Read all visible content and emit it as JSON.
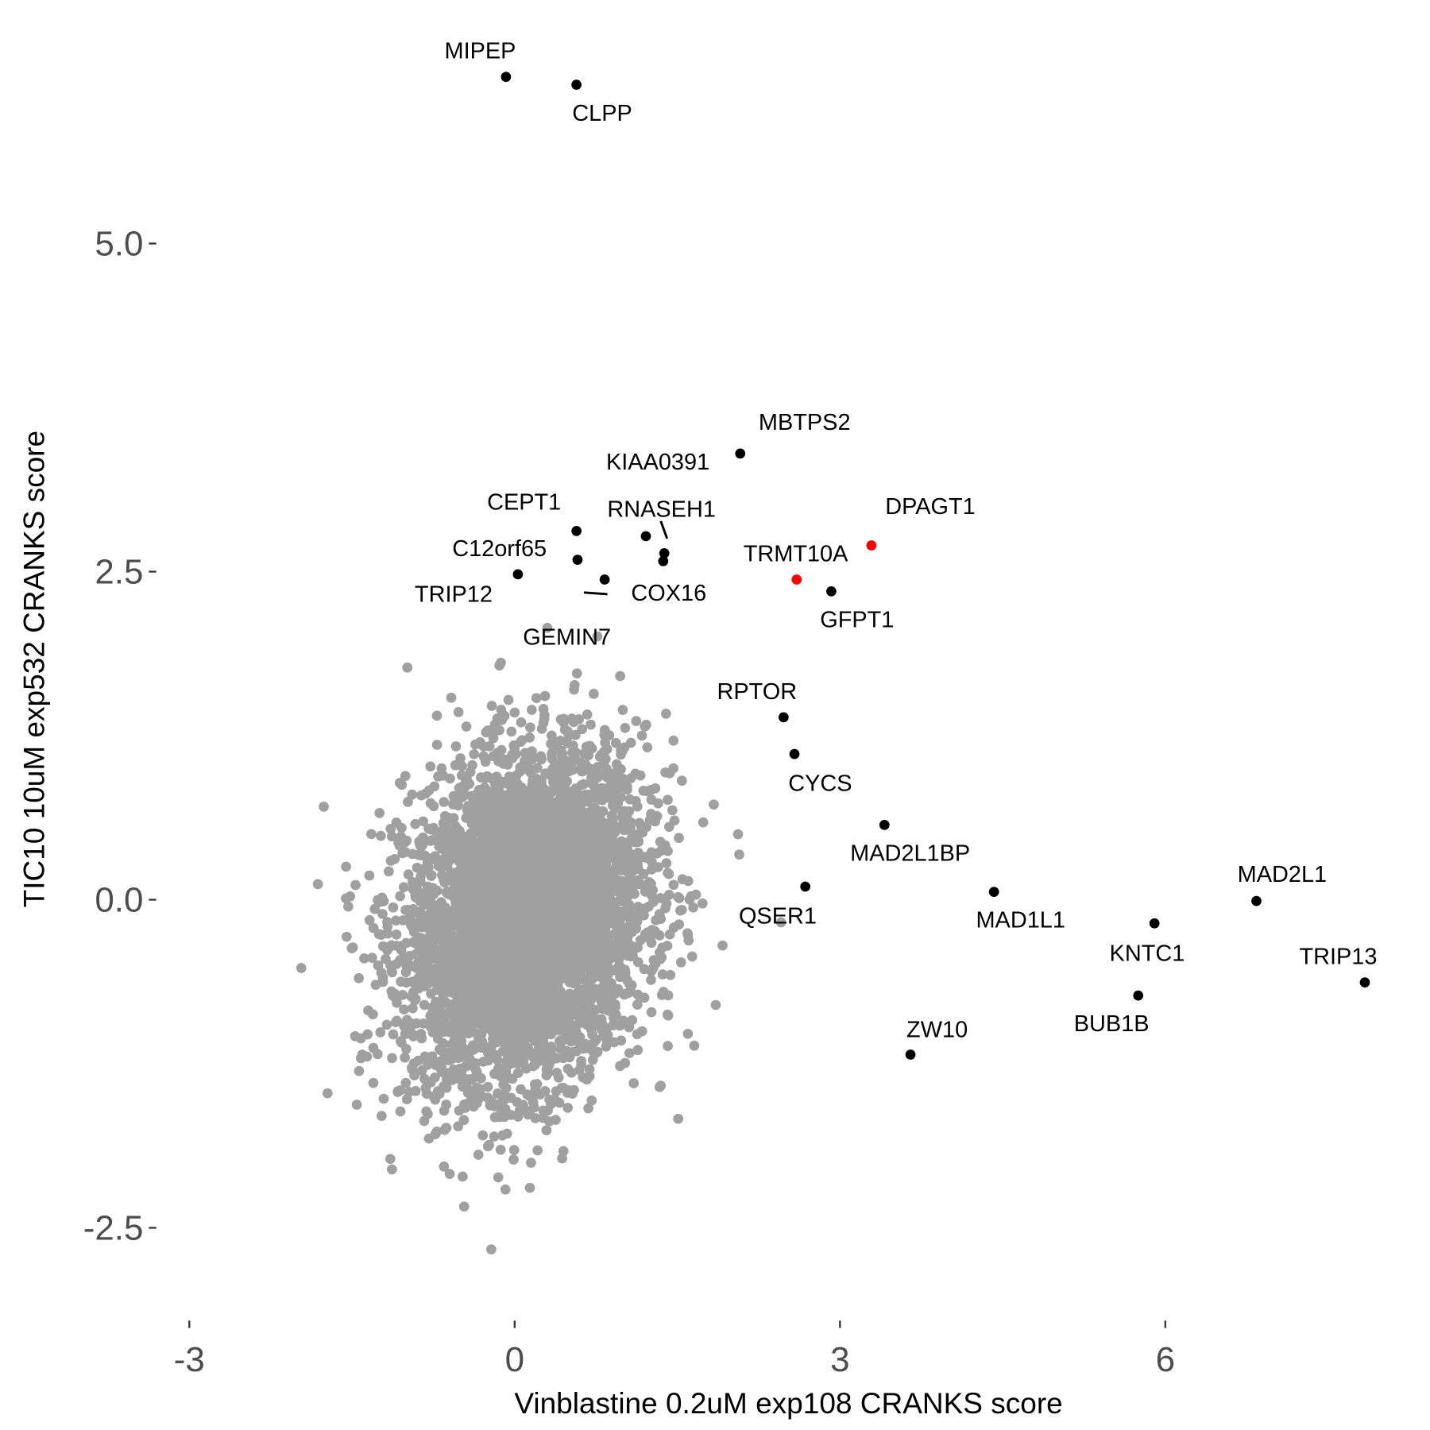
{
  "chart_data": {
    "type": "scatter",
    "title": "",
    "xlabel": "Vinblastine 0.2uM exp108 CRANKS score",
    "ylabel": "TIC10 10uM exp532 CRANKS score",
    "xlim": [
      -3.05,
      8.3
    ],
    "ylim": [
      -3.2,
      6.75
    ],
    "x_ticks": [
      -3,
      0,
      3,
      6
    ],
    "x_tick_labels": [
      "-3",
      "0",
      "3",
      "6"
    ],
    "y_ticks": [
      -2.5,
      0,
      2.5,
      5
    ],
    "y_tick_labels": [
      "-2.5",
      "0.0",
      "2.5",
      "5.0"
    ],
    "grid": false,
    "colors": {
      "background_points": "#a0a0a0",
      "highlight": "#000000",
      "special": "#ff0000"
    },
    "background_points": {
      "count": 5000,
      "x_mean": 0.1,
      "y_mean": -0.15,
      "x_sd": 0.55,
      "y_sd": 0.62,
      "correlation": 0.2,
      "note_range_x": [
        -2.8,
        3.4
      ],
      "note_range_y": [
        -2.75,
        2.5
      ]
    },
    "labeled_points": [
      {
        "name": "MIPEP",
        "x": -0.08,
        "y": 6.27,
        "color": "black"
      },
      {
        "name": "CLPP",
        "x": 0.57,
        "y": 6.21,
        "color": "black"
      },
      {
        "name": "MBTPS2",
        "x": 2.08,
        "y": 3.4,
        "color": "black"
      },
      {
        "name": "KIAA0391",
        "x": 1.38,
        "y": 2.64,
        "color": "black"
      },
      {
        "name": "RNASEH1",
        "x": 1.21,
        "y": 2.77,
        "color": "black"
      },
      {
        "name": "CEPT1",
        "x": 0.57,
        "y": 2.81,
        "color": "black"
      },
      {
        "name": "C12orf65",
        "x": 0.58,
        "y": 2.59,
        "color": "black"
      },
      {
        "name": "TRIP12",
        "x": 0.03,
        "y": 2.48,
        "color": "black"
      },
      {
        "name": "COX16",
        "x": 1.37,
        "y": 2.58,
        "color": "black"
      },
      {
        "name": "GEMIN7",
        "x": 0.83,
        "y": 2.44,
        "color": "black"
      },
      {
        "name": "DPAGT1",
        "x": 3.29,
        "y": 2.7,
        "color": "red"
      },
      {
        "name": "TRMT10A",
        "x": 2.6,
        "y": 2.44,
        "color": "red"
      },
      {
        "name": "GFPT1",
        "x": 2.92,
        "y": 2.35,
        "color": "black"
      },
      {
        "name": "RPTOR",
        "x": 2.48,
        "y": 1.39,
        "color": "black"
      },
      {
        "name": "CYCS",
        "x": 2.58,
        "y": 1.11,
        "color": "black"
      },
      {
        "name": "MAD2L1BP",
        "x": 3.41,
        "y": 0.57,
        "color": "black"
      },
      {
        "name": "QSER1",
        "x": 2.68,
        "y": 0.1,
        "color": "black"
      },
      {
        "name": "MAD1L1",
        "x": 4.42,
        "y": 0.06,
        "color": "black"
      },
      {
        "name": "MAD2L1",
        "x": 6.84,
        "y": -0.01,
        "color": "black"
      },
      {
        "name": "KNTC1",
        "x": 5.9,
        "y": -0.18,
        "color": "black"
      },
      {
        "name": "TRIP13",
        "x": 7.84,
        "y": -0.63,
        "color": "black"
      },
      {
        "name": "BUB1B",
        "x": 5.75,
        "y": -0.73,
        "color": "black"
      },
      {
        "name": "ZW10",
        "x": 3.65,
        "y": -1.18,
        "color": "black"
      }
    ]
  }
}
